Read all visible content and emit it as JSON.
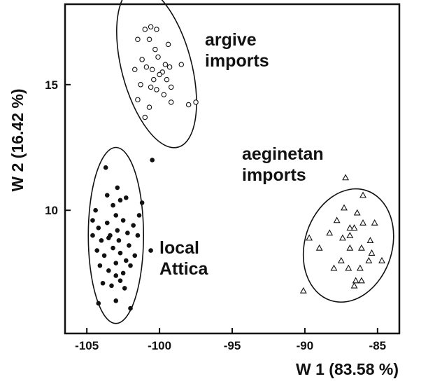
{
  "chart_data": {
    "type": "scatter",
    "title": "",
    "xlabel": "W 1 (83.58 %)",
    "ylabel": "W 2 (16.42 %)",
    "xlim": [
      -106.5,
      -83.5
    ],
    "ylim": [
      5.1,
      18.2
    ],
    "xticks": [
      -105,
      -100,
      -95,
      -90,
      -85
    ],
    "yticks": [
      10,
      15
    ],
    "xtick_labels": [
      "-105",
      "-100",
      "-95",
      "-90",
      "-85"
    ],
    "ytick_labels": [
      "10",
      "15"
    ],
    "grid": false,
    "series": [
      {
        "marker": "circle-open",
        "annotation": [
          "argive",
          "imports"
        ],
        "ellipse": {
          "cx": -100.2,
          "cy": 15.7,
          "rx": 2.4,
          "ry": 3.3,
          "angle_deg": -15
        },
        "points": [
          [
            -101.0,
            17.2
          ],
          [
            -100.6,
            17.3
          ],
          [
            -100.2,
            17.2
          ],
          [
            -101.5,
            16.8
          ],
          [
            -100.7,
            16.8
          ],
          [
            -99.4,
            16.6
          ],
          [
            -100.3,
            16.4
          ],
          [
            -101.2,
            16.0
          ],
          [
            -100.1,
            16.1
          ],
          [
            -99.6,
            15.8
          ],
          [
            -100.9,
            15.7
          ],
          [
            -100.5,
            15.6
          ],
          [
            -99.8,
            15.5
          ],
          [
            -99.3,
            15.7
          ],
          [
            -98.5,
            15.8
          ],
          [
            -100.0,
            15.4
          ],
          [
            -100.4,
            15.2
          ],
          [
            -99.5,
            15.2
          ],
          [
            -101.3,
            15.0
          ],
          [
            -99.2,
            14.9
          ],
          [
            -100.2,
            14.8
          ],
          [
            -99.7,
            14.6
          ],
          [
            -101.5,
            14.4
          ],
          [
            -99.2,
            14.3
          ],
          [
            -100.7,
            14.1
          ],
          [
            -98.0,
            14.2
          ],
          [
            -101.0,
            13.7
          ],
          [
            -97.5,
            14.3
          ],
          [
            -101.7,
            15.6
          ],
          [
            -100.6,
            14.9
          ]
        ]
      },
      {
        "marker": "circle-filled",
        "annotation": [
          "local",
          "Attica"
        ],
        "ellipse": {
          "cx": -103.0,
          "cy": 9.0,
          "rx": 1.9,
          "ry": 3.5,
          "angle_deg": 0
        },
        "points": [
          [
            -103.7,
            11.7
          ],
          [
            -100.5,
            12.0
          ],
          [
            -101.2,
            10.3
          ],
          [
            -104.4,
            10.0
          ],
          [
            -103.2,
            10.2
          ],
          [
            -102.7,
            10.4
          ],
          [
            -102.3,
            10.5
          ],
          [
            -101.4,
            9.8
          ],
          [
            -104.6,
            9.6
          ],
          [
            -104.2,
            9.3
          ],
          [
            -103.6,
            9.5
          ],
          [
            -103.0,
            9.8
          ],
          [
            -102.5,
            9.6
          ],
          [
            -101.8,
            9.4
          ],
          [
            -104.6,
            9.0
          ],
          [
            -104.0,
            8.8
          ],
          [
            -103.4,
            9.0
          ],
          [
            -102.9,
            9.2
          ],
          [
            -102.2,
            9.1
          ],
          [
            -101.5,
            9.0
          ],
          [
            -100.6,
            8.4
          ],
          [
            -104.3,
            8.4
          ],
          [
            -103.8,
            8.2
          ],
          [
            -103.2,
            8.5
          ],
          [
            -102.7,
            8.3
          ],
          [
            -102.1,
            8.6
          ],
          [
            -101.7,
            8.2
          ],
          [
            -104.1,
            7.8
          ],
          [
            -103.5,
            7.6
          ],
          [
            -103.0,
            7.9
          ],
          [
            -102.5,
            7.5
          ],
          [
            -102.0,
            7.8
          ],
          [
            -103.9,
            7.1
          ],
          [
            -103.3,
            7.0
          ],
          [
            -102.7,
            7.2
          ],
          [
            -102.4,
            6.9
          ],
          [
            -104.2,
            6.3
          ],
          [
            -103.0,
            6.4
          ],
          [
            -102.0,
            6.1
          ],
          [
            -103.6,
            10.6
          ],
          [
            -102.9,
            10.9
          ],
          [
            -103.5,
            8.9
          ],
          [
            -102.8,
            8.8
          ],
          [
            -102.3,
            8.0
          ],
          [
            -103.0,
            7.4
          ]
        ]
      },
      {
        "marker": "triangle-open",
        "annotation": [
          "aeginetan",
          "imports"
        ],
        "ellipse": {
          "cx": -87.0,
          "cy": 8.6,
          "rx": 3.0,
          "ry": 2.3,
          "angle_deg": 18
        },
        "points": [
          [
            -87.2,
            11.3
          ],
          [
            -86.0,
            10.6
          ],
          [
            -87.3,
            10.1
          ],
          [
            -86.4,
            9.9
          ],
          [
            -87.8,
            9.6
          ],
          [
            -86.0,
            9.5
          ],
          [
            -85.2,
            9.5
          ],
          [
            -86.9,
            9.3
          ],
          [
            -86.6,
            9.3
          ],
          [
            -88.3,
            9.1
          ],
          [
            -86.9,
            9.0
          ],
          [
            -89.7,
            8.9
          ],
          [
            -87.4,
            8.9
          ],
          [
            -85.5,
            8.8
          ],
          [
            -86.9,
            8.5
          ],
          [
            -86.1,
            8.5
          ],
          [
            -89.0,
            8.5
          ],
          [
            -85.4,
            8.3
          ],
          [
            -85.6,
            8.0
          ],
          [
            -84.7,
            8.0
          ],
          [
            -88.0,
            7.7
          ],
          [
            -87.0,
            7.7
          ],
          [
            -86.2,
            7.7
          ],
          [
            -86.5,
            7.2
          ],
          [
            -86.1,
            7.2
          ],
          [
            -86.6,
            7.0
          ],
          [
            -90.1,
            6.8
          ],
          [
            -87.5,
            8.0
          ]
        ]
      }
    ]
  }
}
